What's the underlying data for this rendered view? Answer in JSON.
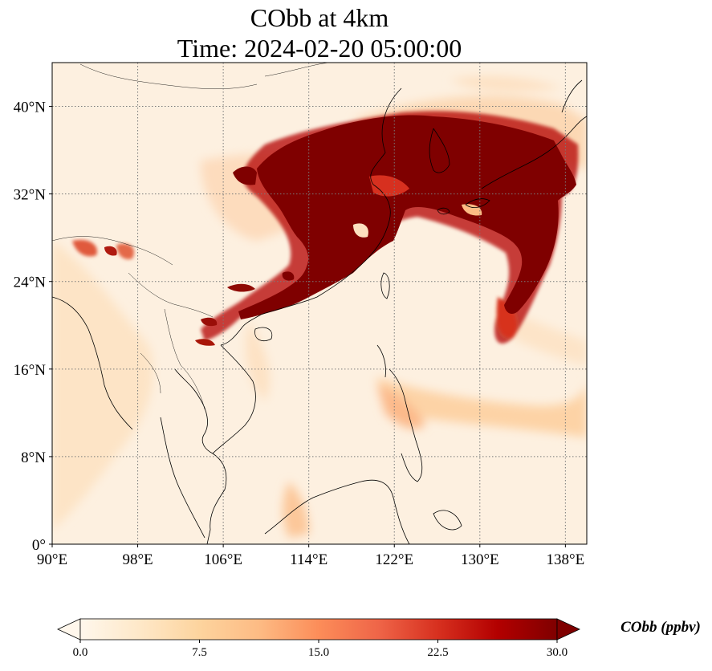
{
  "title": {
    "line1": "CObb at 4km",
    "line2": "Time: 2024-02-20 05:00:00"
  },
  "map": {
    "lon_range": [
      90,
      140
    ],
    "lat_range": [
      0,
      44
    ],
    "lon_ticks": [
      {
        "value": 90,
        "label": "90°E"
      },
      {
        "value": 98,
        "label": "98°E"
      },
      {
        "value": 106,
        "label": "106°E"
      },
      {
        "value": 114,
        "label": "114°E"
      },
      {
        "value": 122,
        "label": "122°E"
      },
      {
        "value": 130,
        "label": "130°E"
      },
      {
        "value": 138,
        "label": "138°E"
      }
    ],
    "lat_ticks": [
      {
        "value": 0,
        "label": "0°"
      },
      {
        "value": 8,
        "label": "8°N"
      },
      {
        "value": 16,
        "label": "16°N"
      },
      {
        "value": 24,
        "label": "24°N"
      },
      {
        "value": 32,
        "label": "32°N"
      },
      {
        "value": 40,
        "label": "40°N"
      }
    ],
    "gridlines": true,
    "gridline_style": "dotted"
  },
  "colorbar": {
    "label": "CObb (ppbv)",
    "colormap": "OrRd",
    "min": 0,
    "max": 30,
    "extend": "both",
    "ticks": [
      {
        "value": 0,
        "label": "0.0"
      },
      {
        "value": 7.5,
        "label": "7.5"
      },
      {
        "value": 15,
        "label": "15.0"
      },
      {
        "value": 22.5,
        "label": "22.5"
      },
      {
        "value": 30,
        "label": "30.0"
      }
    ],
    "stops": [
      "#fff7ec",
      "#fee8c8",
      "#fdd49e",
      "#fdbb84",
      "#fc8d59",
      "#ef6548",
      "#d7301f",
      "#b30000",
      "#7f0000"
    ]
  },
  "colors": {
    "plume_max": "#7f0000",
    "background_field": "#fdf0e0",
    "coastline": "#000000",
    "grid": "#7a7a7a"
  }
}
